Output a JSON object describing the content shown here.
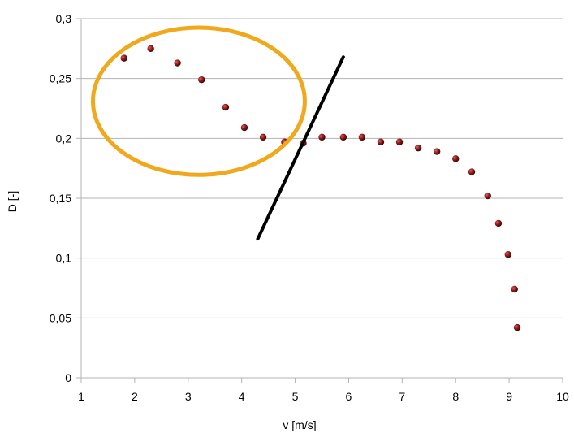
{
  "chart_data": {
    "type": "scatter",
    "title": "",
    "xlabel": "v [m/s]",
    "ylabel": "D [-]",
    "xlim": [
      1,
      10
    ],
    "ylim": [
      0,
      0.3
    ],
    "x_ticks": [
      "1",
      "2",
      "3",
      "4",
      "5",
      "6",
      "7",
      "8",
      "9",
      "10"
    ],
    "y_ticks": [
      "0",
      "0,05",
      "0,1",
      "0,15",
      "0,2",
      "0,25",
      "0,3"
    ],
    "grid": "horizontal",
    "series": [
      {
        "marker_color": "#8b1a1a",
        "points": [
          {
            "x": 1.8,
            "y": 0.267
          },
          {
            "x": 2.3,
            "y": 0.275
          },
          {
            "x": 2.8,
            "y": 0.263
          },
          {
            "x": 3.25,
            "y": 0.249
          },
          {
            "x": 3.7,
            "y": 0.226
          },
          {
            "x": 4.05,
            "y": 0.209
          },
          {
            "x": 4.4,
            "y": 0.201
          },
          {
            "x": 4.8,
            "y": 0.197
          },
          {
            "x": 5.15,
            "y": 0.196
          },
          {
            "x": 5.5,
            "y": 0.201
          },
          {
            "x": 5.9,
            "y": 0.201
          },
          {
            "x": 6.25,
            "y": 0.201
          },
          {
            "x": 6.6,
            "y": 0.197
          },
          {
            "x": 6.95,
            "y": 0.197
          },
          {
            "x": 7.3,
            "y": 0.192
          },
          {
            "x": 7.65,
            "y": 0.189
          },
          {
            "x": 8.0,
            "y": 0.183
          },
          {
            "x": 8.3,
            "y": 0.172
          },
          {
            "x": 8.6,
            "y": 0.152
          },
          {
            "x": 8.8,
            "y": 0.129
          },
          {
            "x": 8.98,
            "y": 0.103
          },
          {
            "x": 9.1,
            "y": 0.074
          },
          {
            "x": 9.15,
            "y": 0.042
          }
        ]
      }
    ],
    "annotations": [
      {
        "shape": "ellipse",
        "color": "#f0a81c",
        "center": [
          3.2,
          0.231
        ],
        "rx": 1.98,
        "ry": 0.0615
      },
      {
        "shape": "line",
        "color": "#000000",
        "from": [
          4.3,
          0.116
        ],
        "to": [
          5.9,
          0.268
        ]
      }
    ]
  }
}
